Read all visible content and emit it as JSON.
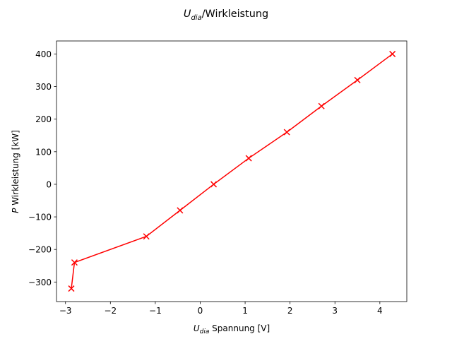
{
  "chart_data": {
    "type": "line",
    "title": {
      "symbol": "U",
      "subscript": "dia",
      "text": "/Wirkleistung"
    },
    "xlabel": {
      "symbol": "U",
      "subscript": "dia",
      "text": " Spannung [V]"
    },
    "ylabel": {
      "symbol": "P",
      "text": " Wirkleistung [kW]"
    },
    "xlim": [
      -3.2,
      4.6
    ],
    "ylim": [
      -360,
      440
    ],
    "xticks": [
      -3,
      -2,
      -1,
      0,
      1,
      2,
      3,
      4
    ],
    "xtick_labels": [
      "−3",
      "−2",
      "−1",
      "0",
      "1",
      "2",
      "3",
      "4"
    ],
    "yticks": [
      -300,
      -200,
      -100,
      0,
      100,
      200,
      300,
      400
    ],
    "ytick_labels": [
      "−300",
      "−200",
      "−100",
      "0",
      "100",
      "200",
      "300",
      "400"
    ],
    "grid": false,
    "series": [
      {
        "color": "#ff0000",
        "marker": "x",
        "x": [
          -2.87,
          -2.8,
          -1.2,
          -0.45,
          0.3,
          1.08,
          1.93,
          2.7,
          3.5,
          4.28
        ],
        "y": [
          -320,
          -240,
          -160,
          -80,
          0,
          80,
          160,
          240,
          320,
          400
        ]
      }
    ]
  }
}
